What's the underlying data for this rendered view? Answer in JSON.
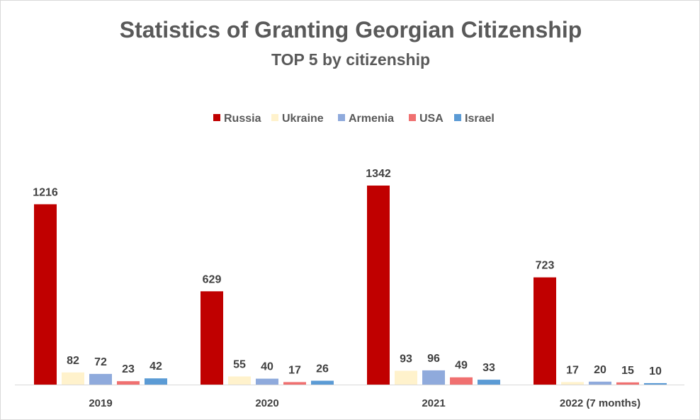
{
  "chart_data": {
    "type": "bar",
    "title": "Statistics of Granting Georgian Citizenship",
    "subtitle": "TOP 5 by citizenship",
    "categories": [
      "2019",
      "2020",
      "2021",
      "2022 (7 months)"
    ],
    "series": [
      {
        "name": "Russia",
        "color": "#c00000",
        "values": [
          1216,
          629,
          1342,
          723
        ]
      },
      {
        "name": "Ukraine",
        "color": "#fff2cc",
        "values": [
          82,
          55,
          93,
          17
        ]
      },
      {
        "name": "Armenia",
        "color": "#8faadc",
        "values": [
          72,
          40,
          96,
          20
        ]
      },
      {
        "name": "USA",
        "color": "#f07070",
        "values": [
          23,
          17,
          49,
          15
        ]
      },
      {
        "name": "Israel",
        "color": "#5b9bd5",
        "values": [
          42,
          26,
          33,
          10
        ]
      }
    ],
    "ylim": [
      0,
      1342
    ],
    "legend_position": "top",
    "grid": false
  }
}
